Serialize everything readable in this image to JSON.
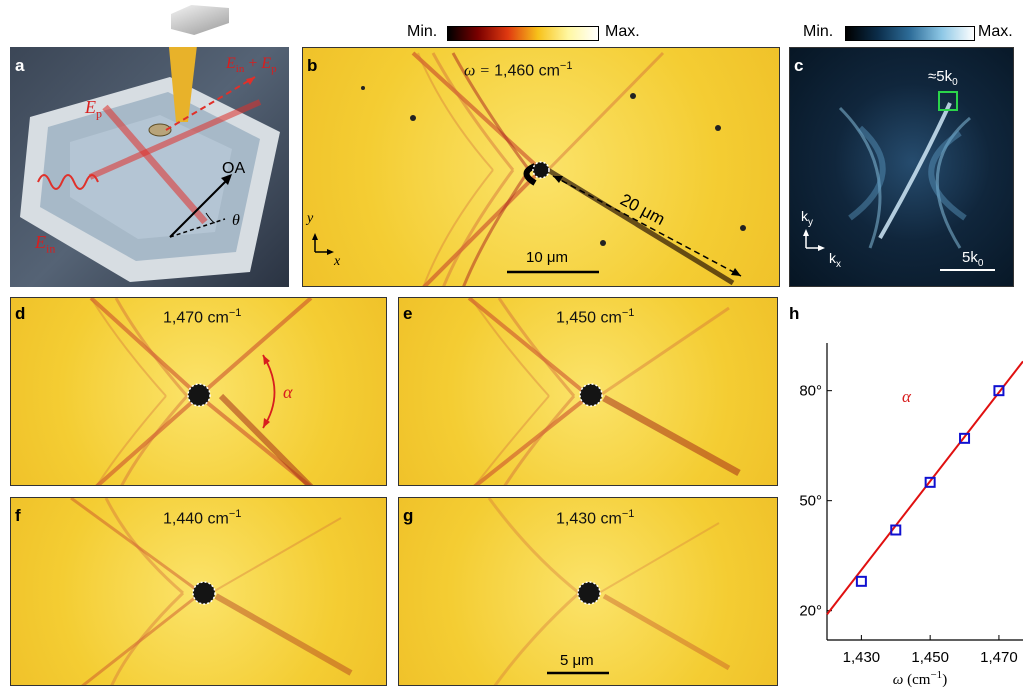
{
  "colorbar_b": {
    "min_label": "Min.",
    "max_label": "Max.",
    "gradient": [
      "#000000",
      "#7a0000",
      "#e03a10",
      "#f7c21a",
      "#fff7a0",
      "#ffffff"
    ]
  },
  "colorbar_c": {
    "min_label": "Min.",
    "max_label": "Max.",
    "gradient": [
      "#000000",
      "#0b2d4a",
      "#2e6d99",
      "#8ec8e6",
      "#ffffff"
    ]
  },
  "panel_a": {
    "letter": "a",
    "labels": {
      "tip_field_a": "E",
      "tip_field_a_sub": "in",
      "plus": "+",
      "tip_field_b": "E",
      "tip_field_b_sub": "p",
      "ep": "E",
      "ep_sub": "p",
      "oa": "OA",
      "theta": "θ",
      "ein": "E",
      "ein_sub": "in"
    }
  },
  "panel_b": {
    "letter": "b",
    "freq_prefix": "ω = ",
    "freq_value": "1,460",
    "freq_unit": "cm",
    "distance": "20 μm",
    "scale_bar": "10 μm",
    "axis_y": "y",
    "axis_x": "x"
  },
  "panel_c": {
    "letter": "c",
    "annot": "≈5k",
    "annot_sub": "0",
    "axis_ky": "k",
    "axis_ky_sub": "y",
    "axis_kx": "k",
    "axis_kx_sub": "x",
    "scale": "5k",
    "scale_sub": "0"
  },
  "panel_d": {
    "letter": "d",
    "freq_value": "1,470",
    "freq_unit": "cm",
    "angle": "α"
  },
  "panel_e": {
    "letter": "e",
    "freq_value": "1,450",
    "freq_unit": "cm"
  },
  "panel_f": {
    "letter": "f",
    "freq_value": "1,440",
    "freq_unit": "cm"
  },
  "panel_g": {
    "letter": "g",
    "freq_value": "1,430",
    "freq_unit": "cm",
    "scale_bar": "5 μm"
  },
  "panel_h": {
    "letter": "h"
  },
  "exponent": "−1",
  "chart_data": {
    "type": "scatter",
    "series": [
      {
        "name": "α",
        "x": [
          1430,
          1440,
          1450,
          1460,
          1470
        ],
        "y": [
          28,
          42,
          55,
          67,
          80
        ]
      }
    ],
    "fit_line": {
      "x": [
        1420,
        1477
      ],
      "y": [
        19,
        88
      ]
    },
    "x_ticks": [
      "1,430",
      "1,450",
      "1,470"
    ],
    "x_tick_values": [
      1430,
      1450,
      1470
    ],
    "y_ticks": [
      "20°",
      "50°",
      "80°"
    ],
    "y_tick_values": [
      20,
      50,
      80
    ],
    "xlim": [
      1420,
      1477
    ],
    "ylim": [
      12,
      93
    ],
    "xlabel": "ω (cm",
    "xlabel_exp": "−1",
    "xlabel_close": ")",
    "series_label": "α",
    "marker_color": "#1010d0",
    "line_color": "#e01010"
  }
}
